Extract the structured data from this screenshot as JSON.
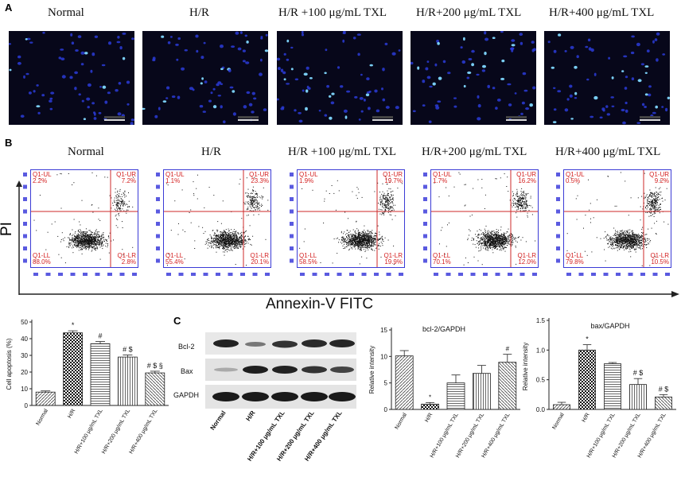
{
  "panel_a": {
    "letter": "A",
    "conditions": [
      "Normal",
      "H/R",
      "H/R +100 μg/mL TXL",
      "H/R+200 μg/mL TXL",
      "H/R+400 μg/mL TXL"
    ]
  },
  "panel_b": {
    "letter": "B",
    "conditions": [
      "Normal",
      "H/R",
      "H/R +100 μg/mL TXL",
      "H/R+200 μg/mL TXL",
      "H/R+400 μg/mL TXL"
    ],
    "y_axis_label": "PI",
    "x_axis_label": "Annexin-V FITC",
    "quadrant_labels": {
      "ul": "Q1-UL",
      "ur": "Q1-UR",
      "ll": "Q1-LL",
      "lr": "Q1-LR"
    },
    "plots": [
      {
        "ul": "2.2%",
        "ur": "7.2%",
        "ll": "88.0%",
        "lr": "2.8%"
      },
      {
        "ul": "1.1%",
        "ur": "23.3%",
        "ll": "55.4%",
        "lr": "20.1%"
      },
      {
        "ul": "1.9%",
        "ur": "19.7%",
        "ll": "58.5%",
        "lr": "19.9%"
      },
      {
        "ul": "1.7%",
        "ur": "16.2%",
        "ll": "70.1%",
        "lr": "12.0%"
      },
      {
        "ul": "0.5%",
        "ur": "9.2%",
        "ll": "79.8%",
        "lr": "10.5%"
      }
    ]
  },
  "panel_c": {
    "letter": "C",
    "blot_labels": [
      "Bcl-2",
      "Bax",
      "GAPDH"
    ],
    "lane_labels": [
      "Normal",
      "H/R",
      "H/R+100 μg/mL TXL",
      "H/R+200 μg/mL TXL",
      "H/R+400 μg/mL TXL"
    ]
  },
  "chart_data": [
    {
      "type": "bar",
      "title": "",
      "ylabel": "Cell apoptosis (%)",
      "xlabel": "",
      "categories": [
        "Normal",
        "H/R",
        "H/R+100 μg/mL TXL",
        "H/R+200 μg/mL TXL",
        "H/R+400 μg/mL TXL"
      ],
      "values": [
        8.0,
        43.5,
        37.0,
        29.0,
        19.5
      ],
      "errors": [
        0.7,
        1.2,
        1.3,
        1.2,
        1.0
      ],
      "annotations": [
        "",
        "*",
        "#",
        "# $",
        "# $ §"
      ],
      "ylim": [
        0,
        50
      ],
      "yticks": [
        "0",
        "10",
        "20",
        "30",
        "40",
        "50"
      ]
    },
    {
      "type": "bar",
      "title": "bcl-2/GAPDH",
      "ylabel": "Relative intensity",
      "xlabel": "",
      "categories": [
        "Normal",
        "H/R",
        "H/R+100 μg/mL TXL",
        "H/R+200 μg/mL TXL",
        "H/R+400 μg/mL TXL"
      ],
      "values": [
        10.1,
        1.0,
        5.0,
        6.8,
        8.9
      ],
      "errors": [
        1.0,
        0.3,
        1.5,
        1.5,
        1.5
      ],
      "annotations": [
        "",
        "*",
        "",
        "",
        "#"
      ],
      "ylim": [
        0,
        15
      ],
      "yticks": [
        "0",
        "5",
        "10",
        "15"
      ]
    },
    {
      "type": "bar",
      "title": "bax/GAPDH",
      "ylabel": "Relative intensity",
      "xlabel": "",
      "categories": [
        "Normal",
        "H/R",
        "H/R+100 μg/mL TXL",
        "H/R+200 μg/mL TXL",
        "H/R+400 μg/mL TXL"
      ],
      "values": [
        0.08,
        1.0,
        0.77,
        0.42,
        0.21
      ],
      "errors": [
        0.04,
        0.09,
        0.02,
        0.1,
        0.04
      ],
      "annotations": [
        "",
        "*",
        "",
        "# $",
        "# $"
      ],
      "ylim": [
        0,
        1.5
      ],
      "yticks": [
        "0.0",
        "0.5",
        "1.0",
        "1.5"
      ]
    }
  ]
}
